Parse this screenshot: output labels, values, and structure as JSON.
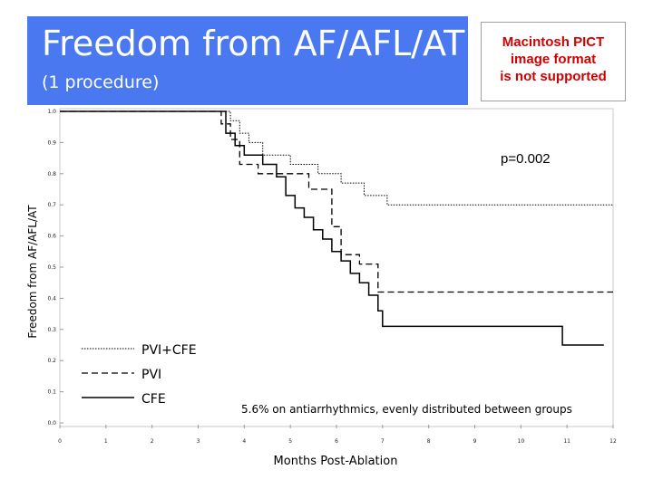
{
  "slide": {
    "title": "Freedom from AF/AFL/AT",
    "subtitle": "(1 procedure)",
    "placeholder_image_text": [
      "Macintosh PICT",
      "image format",
      "is not supported"
    ]
  },
  "chart_data": {
    "type": "line",
    "title": "",
    "xlabel": "Months Post-Ablation",
    "ylabel": "Freedom from AF/AFL/AT",
    "xlim": [
      0,
      12
    ],
    "ylim": [
      0,
      1.0
    ],
    "x_ticks": [
      0,
      1,
      2,
      3,
      4,
      5,
      6,
      7,
      8,
      9,
      10,
      11,
      12
    ],
    "y_ticks": [
      0,
      0.1,
      0.2,
      0.3,
      0.4,
      0.5,
      0.6,
      0.7,
      0.8,
      0.9,
      1.0
    ],
    "x_tick_labels": [
      "0",
      "1",
      "2",
      "3",
      "4",
      "5",
      "6",
      "7",
      "8",
      "9",
      "10",
      "11",
      "12"
    ],
    "y_tick_labels": [
      "0.0",
      "0.1",
      "0.2",
      "0.3",
      "0.4",
      "0.5",
      "0.6",
      "0.7",
      "0.8",
      "0.9",
      "1.0"
    ],
    "annotation": "p=0.002",
    "note": "5.6% on antiarrhythmics, evenly distributed between groups",
    "legend_position": "bottom-left",
    "series": [
      {
        "name": "PVI+CFE",
        "style": "dotted",
        "points": [
          [
            0,
            1.0
          ],
          [
            3.7,
            1.0
          ],
          [
            3.7,
            0.97
          ],
          [
            3.9,
            0.97
          ],
          [
            3.9,
            0.93
          ],
          [
            4.1,
            0.93
          ],
          [
            4.1,
            0.9
          ],
          [
            4.4,
            0.9
          ],
          [
            4.4,
            0.86
          ],
          [
            5.0,
            0.86
          ],
          [
            5.0,
            0.83
          ],
          [
            5.6,
            0.83
          ],
          [
            5.6,
            0.8
          ],
          [
            6.1,
            0.8
          ],
          [
            6.1,
            0.77
          ],
          [
            6.6,
            0.77
          ],
          [
            6.6,
            0.73
          ],
          [
            7.1,
            0.73
          ],
          [
            7.1,
            0.7
          ],
          [
            12.0,
            0.7
          ]
        ]
      },
      {
        "name": "PVI",
        "style": "dashed",
        "points": [
          [
            0,
            1.0
          ],
          [
            3.5,
            1.0
          ],
          [
            3.5,
            0.96
          ],
          [
            3.7,
            0.96
          ],
          [
            3.7,
            0.91
          ],
          [
            3.9,
            0.91
          ],
          [
            3.9,
            0.83
          ],
          [
            4.3,
            0.83
          ],
          [
            4.3,
            0.8
          ],
          [
            5.4,
            0.8
          ],
          [
            5.4,
            0.75
          ],
          [
            5.9,
            0.75
          ],
          [
            5.9,
            0.63
          ],
          [
            6.1,
            0.63
          ],
          [
            6.1,
            0.54
          ],
          [
            6.5,
            0.54
          ],
          [
            6.5,
            0.51
          ],
          [
            6.9,
            0.51
          ],
          [
            6.9,
            0.42
          ],
          [
            12.0,
            0.42
          ]
        ]
      },
      {
        "name": "CFE",
        "style": "solid",
        "points": [
          [
            0,
            1.0
          ],
          [
            3.6,
            1.0
          ],
          [
            3.6,
            0.93
          ],
          [
            3.8,
            0.93
          ],
          [
            3.8,
            0.89
          ],
          [
            4.0,
            0.89
          ],
          [
            4.0,
            0.86
          ],
          [
            4.4,
            0.86
          ],
          [
            4.4,
            0.83
          ],
          [
            4.7,
            0.83
          ],
          [
            4.7,
            0.79
          ],
          [
            4.9,
            0.79
          ],
          [
            4.9,
            0.73
          ],
          [
            5.1,
            0.73
          ],
          [
            5.1,
            0.69
          ],
          [
            5.3,
            0.69
          ],
          [
            5.3,
            0.66
          ],
          [
            5.5,
            0.66
          ],
          [
            5.5,
            0.62
          ],
          [
            5.7,
            0.62
          ],
          [
            5.7,
            0.59
          ],
          [
            5.9,
            0.59
          ],
          [
            5.9,
            0.55
          ],
          [
            6.1,
            0.55
          ],
          [
            6.1,
            0.52
          ],
          [
            6.3,
            0.52
          ],
          [
            6.3,
            0.48
          ],
          [
            6.5,
            0.48
          ],
          [
            6.5,
            0.45
          ],
          [
            6.7,
            0.45
          ],
          [
            6.7,
            0.41
          ],
          [
            6.9,
            0.41
          ],
          [
            6.9,
            0.36
          ],
          [
            7.0,
            0.36
          ],
          [
            7.0,
            0.31
          ],
          [
            10.9,
            0.31
          ],
          [
            10.9,
            0.25
          ],
          [
            11.8,
            0.25
          ]
        ]
      }
    ]
  }
}
